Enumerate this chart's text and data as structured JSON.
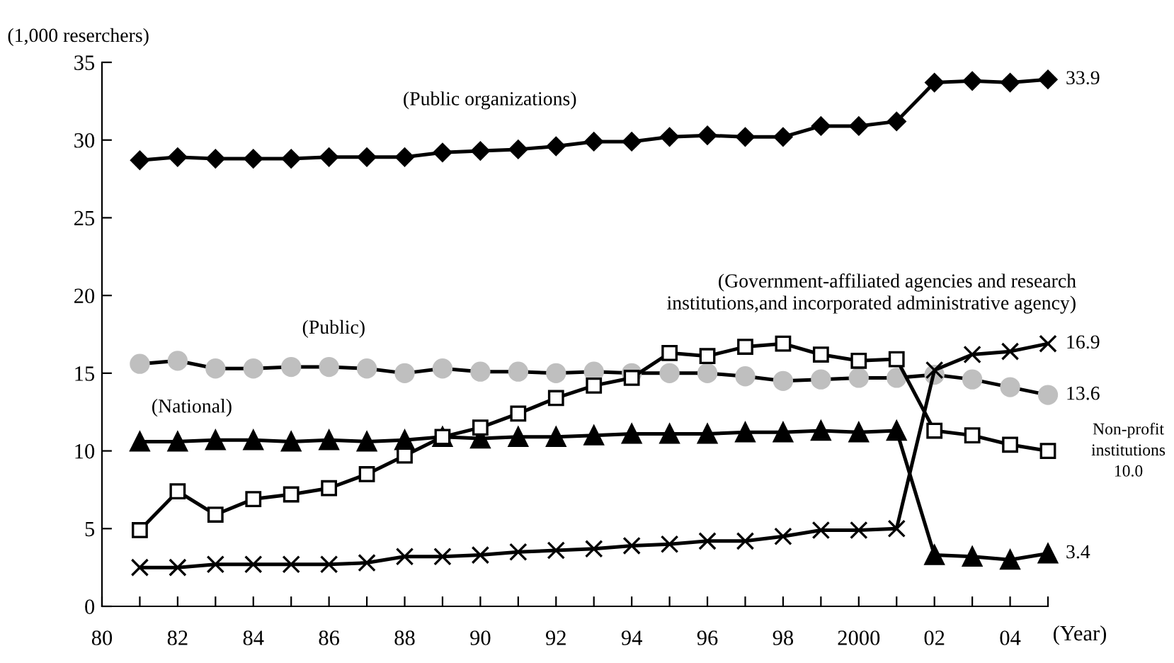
{
  "chart_data": {
    "type": "line",
    "ylabel": "(1,000 reserchers)",
    "xlabel": "(Year)",
    "x": [
      1981,
      1982,
      1983,
      1984,
      1985,
      1986,
      1987,
      1988,
      1989,
      1990,
      1991,
      1992,
      1993,
      1994,
      1995,
      1996,
      1997,
      1998,
      1999,
      2000,
      2001,
      2002,
      2003,
      2004,
      2005
    ],
    "series": [
      {
        "color": "#000000",
        "marker": "diamond",
        "values": [
          28.7,
          28.9,
          28.8,
          28.8,
          28.8,
          28.9,
          28.9,
          28.9,
          29.2,
          29.3,
          29.4,
          29.6,
          29.9,
          29.9,
          30.2,
          30.3,
          30.2,
          30.2,
          30.9,
          30.9,
          31.2,
          33.7,
          33.8,
          33.7,
          33.9
        ],
        "value_labels": [
          null,
          null,
          null,
          null,
          null,
          null,
          null,
          null,
          null,
          null,
          null,
          null,
          null,
          null,
          null,
          null,
          null,
          null,
          null,
          null,
          null,
          null,
          null,
          null,
          "33.9"
        ]
      },
      {
        "color": "#bfbfbf",
        "marker": "circle",
        "values": [
          15.6,
          15.8,
          15.3,
          15.3,
          15.4,
          15.4,
          15.3,
          15.0,
          15.3,
          15.1,
          15.1,
          15.0,
          15.1,
          15.0,
          15.0,
          15.0,
          14.8,
          14.5,
          14.6,
          14.7,
          14.7,
          14.9,
          14.6,
          14.1,
          13.6
        ],
        "value_labels": [
          null,
          null,
          null,
          null,
          null,
          null,
          null,
          null,
          null,
          null,
          null,
          null,
          null,
          null,
          null,
          null,
          null,
          null,
          null,
          null,
          null,
          null,
          null,
          null,
          "13.6"
        ]
      },
      {
        "color": "#000000",
        "marker": "triangle",
        "values": [
          10.6,
          10.6,
          10.7,
          10.7,
          10.6,
          10.7,
          10.6,
          10.7,
          10.9,
          10.8,
          10.9,
          10.9,
          11.0,
          11.1,
          11.1,
          11.1,
          11.2,
          11.2,
          11.3,
          11.2,
          11.3,
          3.3,
          3.2,
          3.0,
          3.4
        ],
        "value_labels": [
          null,
          null,
          null,
          null,
          null,
          null,
          null,
          null,
          null,
          null,
          null,
          null,
          null,
          null,
          null,
          null,
          null,
          null,
          null,
          null,
          null,
          null,
          null,
          null,
          "3.4"
        ]
      },
      {
        "color": "#000000",
        "marker": "square",
        "values": [
          4.9,
          7.4,
          5.9,
          6.9,
          7.2,
          7.6,
          8.5,
          9.7,
          10.9,
          11.5,
          12.4,
          13.4,
          14.2,
          14.7,
          16.3,
          16.1,
          16.7,
          16.9,
          16.2,
          15.8,
          15.9,
          11.3,
          11.0,
          10.4,
          10.0
        ]
      },
      {
        "color": "#000000",
        "marker": "cross",
        "values": [
          2.5,
          2.5,
          2.7,
          2.7,
          2.7,
          2.7,
          2.8,
          3.2,
          3.2,
          3.3,
          3.5,
          3.6,
          3.7,
          3.9,
          4.0,
          4.2,
          4.2,
          4.5,
          4.9,
          4.9,
          5.0,
          15.2,
          16.2,
          16.4,
          16.9
        ],
        "value_labels": [
          null,
          null,
          null,
          null,
          null,
          null,
          null,
          null,
          null,
          null,
          null,
          null,
          null,
          null,
          null,
          null,
          null,
          null,
          null,
          null,
          null,
          null,
          null,
          null,
          "16.9"
        ]
      }
    ],
    "annotations": [
      "(Public organizations)",
      "(Government-affiliated agencies and research\ninstitutions,and incorporated administrative agency)",
      "(Public)",
      "(National)",
      "Non-profit\ninstitutions\n10.0"
    ],
    "xlim": [
      1980,
      2005
    ],
    "ylim": [
      0,
      35
    ],
    "xticks": [
      {
        "value": 1980,
        "label": "80"
      },
      {
        "value": 1981,
        "label": null
      },
      {
        "value": 1982,
        "label": "82"
      },
      {
        "value": 1983,
        "label": null
      },
      {
        "value": 1984,
        "label": "84"
      },
      {
        "value": 1985,
        "label": null
      },
      {
        "value": 1986,
        "label": "86"
      },
      {
        "value": 1987,
        "label": null
      },
      {
        "value": 1988,
        "label": "88"
      },
      {
        "value": 1989,
        "label": null
      },
      {
        "value": 1990,
        "label": "90"
      },
      {
        "value": 1991,
        "label": null
      },
      {
        "value": 1992,
        "label": "92"
      },
      {
        "value": 1993,
        "label": null
      },
      {
        "value": 1994,
        "label": "94"
      },
      {
        "value": 1995,
        "label": null
      },
      {
        "value": 1996,
        "label": "96"
      },
      {
        "value": 1997,
        "label": null
      },
      {
        "value": 1998,
        "label": "98"
      },
      {
        "value": 1999,
        "label": null
      },
      2000,
      {
        "value": 2001,
        "label": null
      },
      {
        "value": 2002,
        "label": "02"
      },
      {
        "value": 2003,
        "label": null
      },
      {
        "value": 2004,
        "label": "04"
      },
      {
        "value": 2005,
        "label": null
      }
    ],
    "yticks": [
      0,
      5,
      10,
      15,
      20,
      25,
      30,
      35
    ],
    "grid": false,
    "legend": false,
    "line_style": "solid"
  }
}
